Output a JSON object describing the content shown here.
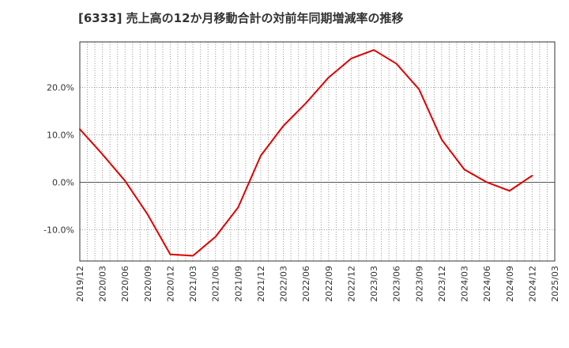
{
  "chart_data": {
    "type": "line",
    "title": "[6333]  売上高の12か月移動合計の対前年同期増減率の推移",
    "xlabel": "",
    "ylabel": "",
    "x_tick_labels": [
      "2019/12",
      "2020/03",
      "2020/06",
      "2020/09",
      "2020/12",
      "2021/03",
      "2021/06",
      "2021/09",
      "2021/12",
      "2022/03",
      "2022/06",
      "2022/09",
      "2022/12",
      "2023/03",
      "2023/06",
      "2023/09",
      "2023/12",
      "2024/03",
      "2024/06",
      "2024/09",
      "2024/12",
      "2025/03"
    ],
    "y_ticks": [
      {
        "value": 20,
        "label": "20.0%"
      },
      {
        "value": 10,
        "label": "10.0%"
      },
      {
        "value": 0,
        "label": "0.0%"
      },
      {
        "value": -10,
        "label": "-10.0%"
      }
    ],
    "ylim": [
      -16.6,
      29.6
    ],
    "grid": true,
    "line_color": "#dd0000",
    "series": [
      {
        "name": "対前年同期増減率",
        "categories": [
          "2019/12",
          "2020/03",
          "2020/06",
          "2020/09",
          "2020/12",
          "2021/03",
          "2021/06",
          "2021/09",
          "2021/12",
          "2022/03",
          "2022/06",
          "2022/09",
          "2022/12",
          "2023/03",
          "2023/06",
          "2023/09",
          "2023/12",
          "2024/03",
          "2024/06",
          "2024/09",
          "2024/12"
        ],
        "values": [
          11.2,
          5.9,
          0.3,
          -6.8,
          -15.2,
          -15.5,
          -11.5,
          -5.3,
          5.6,
          11.9,
          16.7,
          22.1,
          26.1,
          27.9,
          25.0,
          19.6,
          9.0,
          2.7,
          0.0,
          -1.8,
          1.4
        ]
      }
    ]
  }
}
